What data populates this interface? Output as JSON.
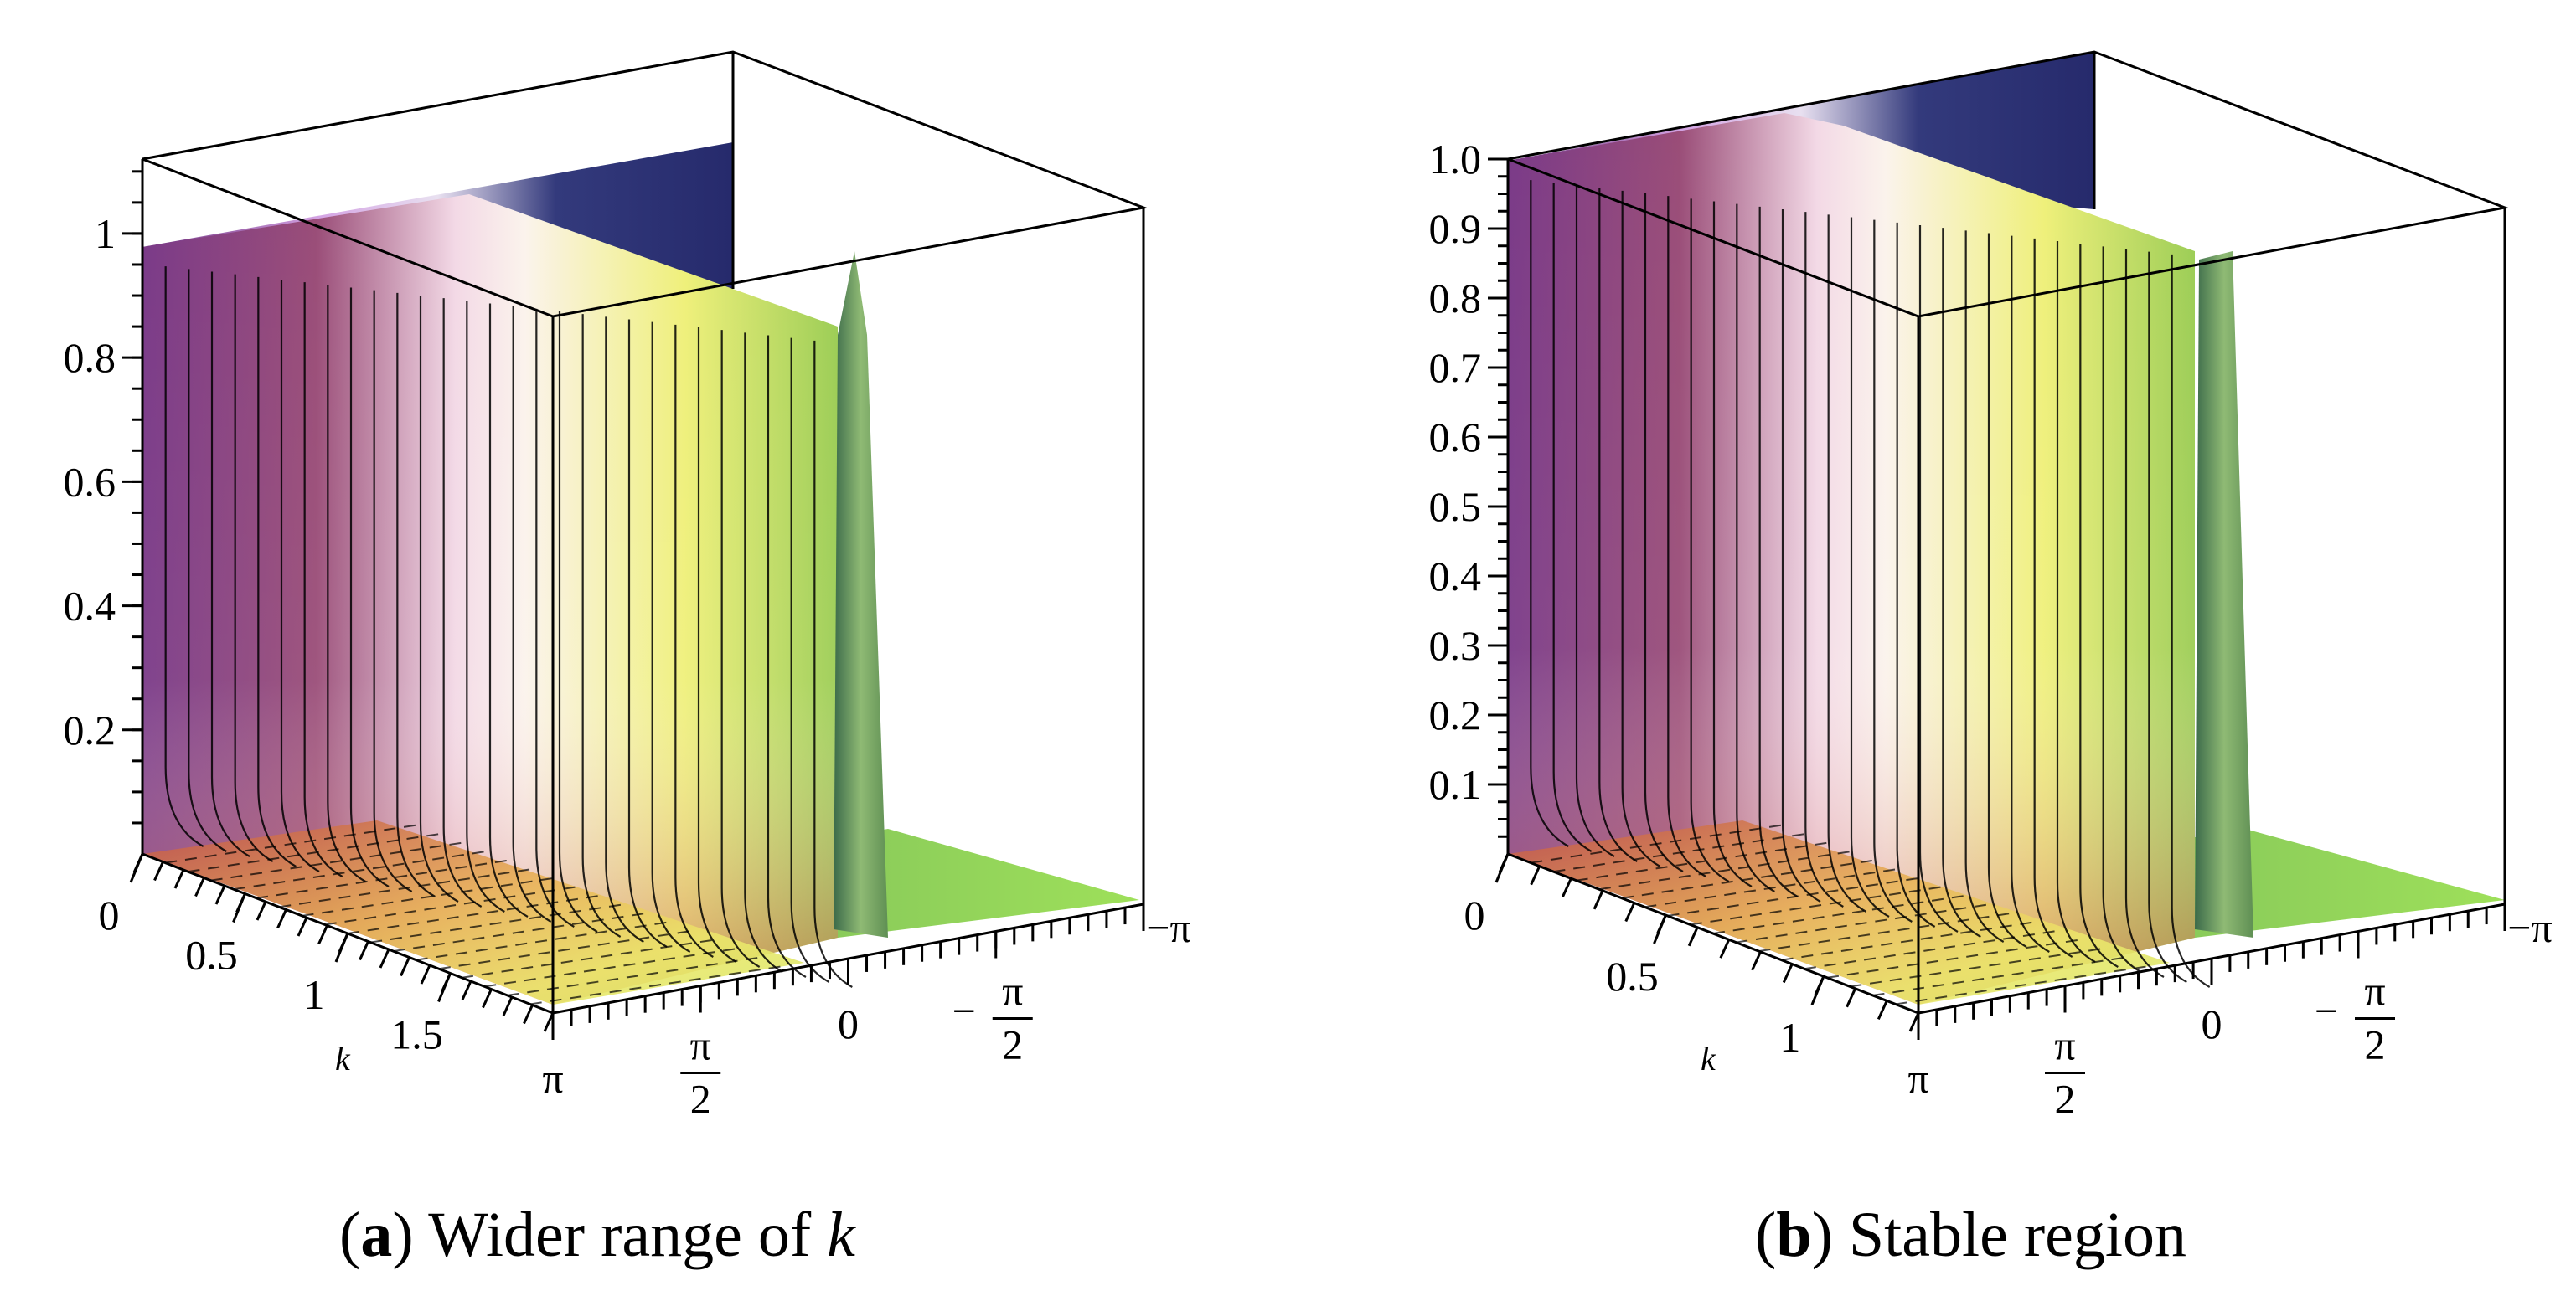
{
  "chart_data": [
    {
      "type": "surface3d",
      "panel": "a",
      "caption_label": "a",
      "caption_text": "Wider range of",
      "caption_var": "k",
      "z_ticks": [
        "0.2",
        "0.4",
        "0.6",
        "0.8",
        "1"
      ],
      "z_range": [
        0,
        1.12
      ],
      "k_ticks": [
        "0",
        "0.5",
        "1",
        "1.5"
      ],
      "k_axis_label": "k",
      "k_range": [
        0,
        2
      ],
      "theta_ticks": [
        "π",
        "π/2",
        "0",
        "−π/2",
        "−π"
      ],
      "theta_range": [
        "π",
        "−π"
      ],
      "surface_description_values": {
        "plateau_height": 1.0,
        "dip_peak_height": 0.92
      }
    },
    {
      "type": "surface3d",
      "panel": "b",
      "caption_label": "b",
      "caption_text": "Stable region",
      "z_ticks": [
        "0.1",
        "0.2",
        "0.3",
        "0.4",
        "0.5",
        "0.6",
        "0.7",
        "0.8",
        "0.9",
        "1.0"
      ],
      "z_range": [
        0,
        1.0
      ],
      "k_ticks": [
        "0",
        "0.5",
        "1"
      ],
      "k_axis_label": "k",
      "k_range": [
        0,
        1.3
      ],
      "theta_ticks": [
        "π",
        "π/2",
        "0",
        "−π/2",
        "−π"
      ],
      "theta_range": [
        "π",
        "−π"
      ],
      "surface_description_values": {
        "plateau_height": 1.0,
        "dip_peak_height": 1.0
      }
    }
  ],
  "colors": {
    "purple": "#6a2a7a",
    "red": "#b0484c",
    "yellow": "#efe07a",
    "green": "#96cc5a",
    "navy": "#262a6c",
    "white": "#fbf6f4"
  }
}
